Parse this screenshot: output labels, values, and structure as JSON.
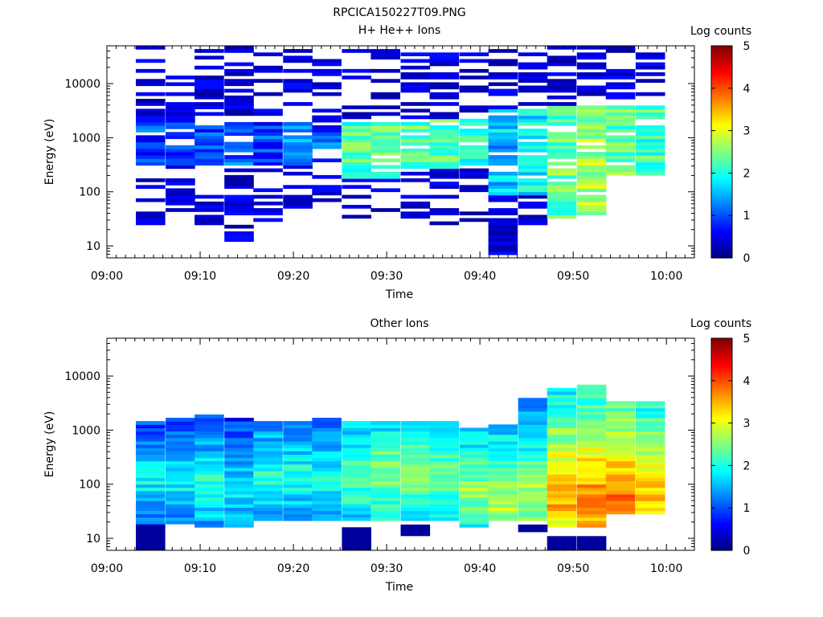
{
  "figure_title": "RPCICA150227T09.PNG",
  "chart_data": [
    {
      "type": "heatmap",
      "title": "H+ He++ Ions",
      "xlabel": "Time",
      "ylabel": "Energy (eV)",
      "x_ticks": [
        "09:00",
        "09:10",
        "09:20",
        "09:30",
        "09:40",
        "09:50",
        "10:00"
      ],
      "x_range_minutes": [
        0,
        63
      ],
      "y_scale": "log",
      "ylim": [
        6,
        50000
      ],
      "y_ticks": [
        "10",
        "100",
        "1000",
        "10000"
      ],
      "colorbar": {
        "label": "Log counts",
        "range": [
          0,
          5
        ],
        "ticks": [
          "0",
          "1",
          "2",
          "3",
          "4",
          "5"
        ]
      },
      "time_bins_start_minutes": [
        3.1,
        6.3,
        9.4,
        12.6,
        15.7,
        18.9,
        22.0,
        25.2,
        28.3,
        31.5,
        34.6,
        37.8,
        40.9,
        44.1,
        47.2,
        50.4,
        53.5,
        56.7
      ],
      "columns": [
        {
          "emin": 22,
          "emax": 45000,
          "dense_min": 350,
          "dense_max": 1800,
          "dense_level": 0.9
        },
        {
          "emin": 30,
          "emax": 42000,
          "dense_min": 350,
          "dense_max": 1800,
          "dense_level": 0.9
        },
        {
          "emin": 27,
          "emax": 42000,
          "dense_min": 350,
          "dense_max": 1800,
          "dense_level": 1.0
        },
        {
          "emin": 11,
          "emax": 45000,
          "dense_min": 350,
          "dense_max": 1800,
          "dense_level": 1.0
        },
        {
          "emin": 30,
          "emax": 45000,
          "dense_min": 350,
          "dense_max": 1800,
          "dense_level": 0.9
        },
        {
          "emin": 50,
          "emax": 45000,
          "dense_min": 350,
          "dense_max": 1800,
          "dense_level": 1.5
        },
        {
          "emin": 50,
          "emax": 45000,
          "dense_min": 350,
          "dense_max": 1500,
          "dense_level": 1.0
        },
        {
          "emin": 28,
          "emax": 45000,
          "dense_min": 200,
          "dense_max": 1800,
          "dense_level": 2.3
        },
        {
          "emin": 30,
          "emax": 45000,
          "dense_min": 200,
          "dense_max": 1800,
          "dense_level": 2.5
        },
        {
          "emin": 30,
          "emax": 45000,
          "dense_min": 300,
          "dense_max": 1800,
          "dense_level": 2.3
        },
        {
          "emin": 24,
          "emax": 45000,
          "dense_min": 300,
          "dense_max": 2000,
          "dense_level": 2.3
        },
        {
          "emin": 28,
          "emax": 45000,
          "dense_min": 350,
          "dense_max": 2000,
          "dense_level": 2.0
        },
        {
          "emin": 6,
          "emax": 45000,
          "dense_min": 100,
          "dense_max": 3000,
          "dense_level": 1.6
        },
        {
          "emin": 28,
          "emax": 45000,
          "dense_min": 100,
          "dense_max": 3500,
          "dense_level": 1.9
        },
        {
          "emin": 33,
          "emax": 45000,
          "dense_min": 35,
          "dense_max": 3500,
          "dense_level": 2.4
        },
        {
          "emin": 33,
          "emax": 45000,
          "dense_min": 35,
          "dense_max": 3500,
          "dense_level": 2.6
        },
        {
          "emin": 230,
          "emax": 45000,
          "dense_min": 230,
          "dense_max": 3500,
          "dense_level": 2.3
        },
        {
          "emin": 230,
          "emax": 45000,
          "dense_min": 230,
          "dense_max": 3500,
          "dense_level": 2.2
        }
      ]
    },
    {
      "type": "heatmap",
      "title": "Other Ions",
      "xlabel": "Time",
      "ylabel": "Energy (eV)",
      "x_ticks": [
        "09:00",
        "09:10",
        "09:20",
        "09:30",
        "09:40",
        "09:50",
        "10:00"
      ],
      "x_range_minutes": [
        0,
        63
      ],
      "y_scale": "log",
      "ylim": [
        6,
        50000
      ],
      "y_ticks": [
        "10",
        "100",
        "1000",
        "10000"
      ],
      "colorbar": {
        "label": "Log counts",
        "range": [
          0,
          5
        ],
        "ticks": [
          "0",
          "1",
          "2",
          "3",
          "4",
          "5"
        ]
      },
      "time_bins_start_minutes": [
        3.1,
        6.3,
        9.4,
        12.6,
        15.7,
        18.9,
        22.0,
        25.2,
        28.3,
        31.5,
        34.6,
        37.8,
        40.9,
        44.1,
        47.2,
        50.4,
        53.5,
        56.7
      ],
      "columns": [
        {
          "emin": 18,
          "emax": 1400,
          "level": 1.9,
          "peak": 120
        },
        {
          "emin": 20,
          "emax": 1500,
          "level": 1.9,
          "peak": 110
        },
        {
          "emin": 18,
          "emax": 1900,
          "level": 2.1,
          "peak": 100
        },
        {
          "emin": 18,
          "emax": 1600,
          "level": 1.9,
          "peak": 90
        },
        {
          "emin": 22,
          "emax": 1400,
          "level": 2.1,
          "peak": 150
        },
        {
          "emin": 22,
          "emax": 1300,
          "level": 2.1,
          "peak": 150
        },
        {
          "emin": 24,
          "emax": 1600,
          "level": 2.1,
          "peak": 120
        },
        {
          "emin": 22,
          "emax": 1300,
          "level": 2.4,
          "peak": 150
        },
        {
          "emin": 22,
          "emax": 1300,
          "level": 2.6,
          "peak": 150
        },
        {
          "emin": 22,
          "emax": 1400,
          "level": 2.6,
          "peak": 150
        },
        {
          "emin": 22,
          "emax": 1300,
          "level": 2.5,
          "peak": 150
        },
        {
          "emin": 18,
          "emax": 1100,
          "level": 2.6,
          "peak": 80
        },
        {
          "emin": 22,
          "emax": 1200,
          "level": 2.8,
          "peak": 50
        },
        {
          "emin": 22,
          "emax": 3500,
          "level": 2.8,
          "peak": 60
        },
        {
          "emin": 18,
          "emax": 6000,
          "level": 3.6,
          "peak": 60
        },
        {
          "emin": 18,
          "emax": 6500,
          "level": 3.8,
          "peak": 55
        },
        {
          "emin": 30,
          "emax": 3000,
          "level": 3.9,
          "peak": 50
        },
        {
          "emin": 30,
          "emax": 3000,
          "level": 3.5,
          "peak": 60
        }
      ],
      "low_energy_patches": [
        {
          "bin": 0,
          "emin": 6,
          "emax": 18
        },
        {
          "bin": 7,
          "emin": 6,
          "emax": 16
        },
        {
          "bin": 9,
          "emin": 11,
          "emax": 18
        },
        {
          "bin": 13,
          "emin": 13,
          "emax": 18
        },
        {
          "bin": 14,
          "emin": 6,
          "emax": 11
        },
        {
          "bin": 15,
          "emin": 6,
          "emax": 11
        }
      ]
    }
  ]
}
